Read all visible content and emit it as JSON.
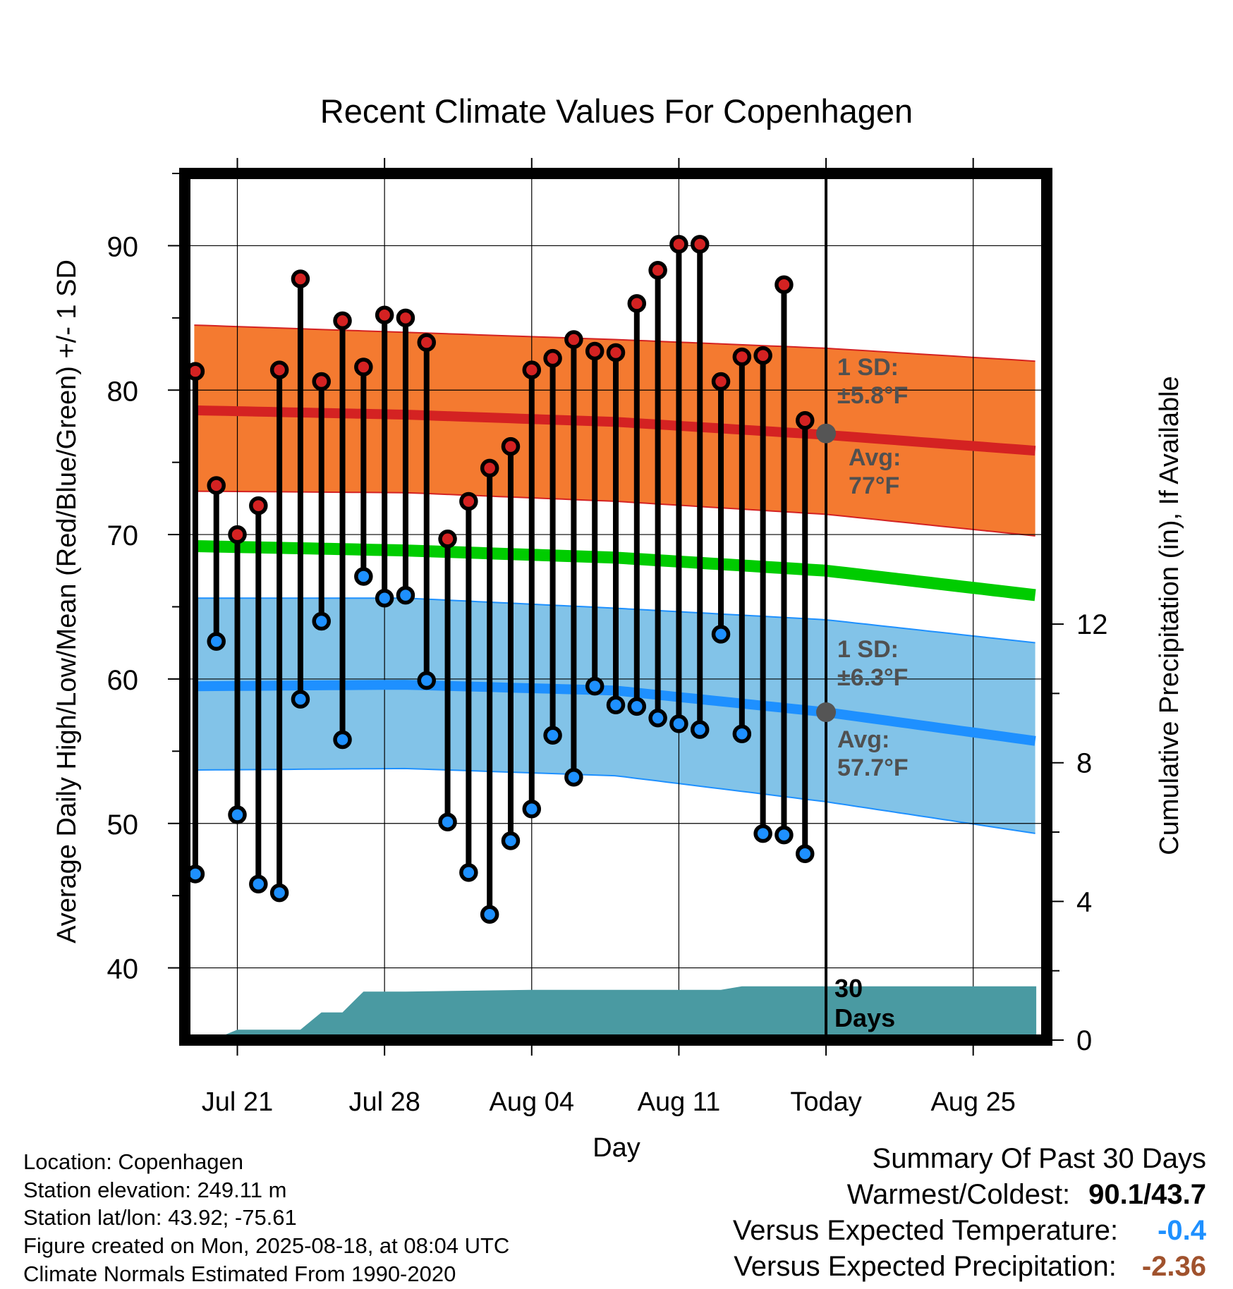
{
  "chart_data": {
    "type": "line",
    "title": "Recent Climate Values For Copenhagen",
    "xlabel": "Day",
    "ylabel": "Average Daily High/Low/Mean (Red/Blue/Green) +/- 1 SD",
    "ylabel_right": "Cumulative Precipitation (in), If Available",
    "ylim": [
      35,
      95
    ],
    "ylim_right": [
      0,
      25
    ],
    "yticks": [
      40,
      50,
      60,
      70,
      80,
      90
    ],
    "yticks_right": [
      0,
      4,
      8,
      12
    ],
    "xlim": [
      -0.5,
      40.5
    ],
    "xticks": [
      {
        "day": 2,
        "label": "Jul 21"
      },
      {
        "day": 9,
        "label": "Jul 28"
      },
      {
        "day": 16,
        "label": "Aug 04"
      },
      {
        "day": 23,
        "label": "Aug 11"
      },
      {
        "day": 30,
        "label": "Today"
      },
      {
        "day": 37,
        "label": "Aug 25"
      }
    ],
    "today_day": 30,
    "today_label": [
      "30",
      "Days"
    ],
    "highs": [
      81.3,
      73.4,
      70.0,
      72.0,
      81.4,
      87.7,
      80.6,
      84.8,
      81.6,
      85.2,
      85.0,
      83.3,
      69.7,
      72.3,
      74.6,
      76.1,
      81.4,
      82.2,
      83.5,
      82.7,
      82.6,
      86.0,
      88.3,
      90.1,
      90.1,
      80.6,
      82.3,
      82.4,
      87.3,
      77.9
    ],
    "lows": [
      46.5,
      62.6,
      50.6,
      45.8,
      45.2,
      58.6,
      64.0,
      55.8,
      67.1,
      65.6,
      65.8,
      59.9,
      50.1,
      46.6,
      43.7,
      48.8,
      51.0,
      56.1,
      53.2,
      59.5,
      58.2,
      58.1,
      57.3,
      56.9,
      56.5,
      63.1,
      56.2,
      49.3,
      49.2,
      47.9
    ],
    "normal_high": {
      "x": [
        0,
        10,
        20,
        30,
        40
      ],
      "values": [
        78.6,
        78.3,
        77.8,
        76.9,
        75.8
      ]
    },
    "normal_high_sd_upper": {
      "x": [
        0,
        10,
        20,
        30,
        40
      ],
      "values": [
        84.5,
        84.0,
        83.5,
        82.9,
        82.0
      ]
    },
    "normal_high_sd_lower": {
      "x": [
        0,
        10,
        20,
        30,
        40
      ],
      "values": [
        73.0,
        72.9,
        72.3,
        71.4,
        69.9
      ]
    },
    "normal_mean": {
      "x": [
        0,
        10,
        20,
        30,
        40
      ],
      "values": [
        69.2,
        68.9,
        68.4,
        67.5,
        65.8
      ]
    },
    "normal_low": {
      "x": [
        0,
        10,
        20,
        30,
        40
      ],
      "values": [
        59.5,
        59.6,
        59.2,
        57.7,
        55.7
      ]
    },
    "normal_low_sd_upper": {
      "x": [
        0,
        10,
        20,
        30,
        40
      ],
      "values": [
        65.6,
        65.6,
        64.9,
        64.1,
        62.5
      ]
    },
    "normal_low_sd_lower": {
      "x": [
        0,
        10,
        20,
        30,
        40
      ],
      "values": [
        53.7,
        53.8,
        53.3,
        51.5,
        49.3
      ]
    },
    "precip_cumulative": {
      "x": [
        0,
        0.5,
        1,
        2,
        5,
        6,
        7,
        8,
        9,
        10,
        16,
        25,
        26,
        30,
        40
      ],
      "values": [
        0,
        0,
        0.05,
        0.3,
        0.3,
        0.8,
        0.8,
        1.4,
        1.4,
        1.4,
        1.45,
        1.45,
        1.55,
        1.55,
        1.55
      ]
    },
    "annotations": {
      "high_sd": [
        "1 SD:",
        "±5.8°F"
      ],
      "high_avg": [
        "Avg:",
        "77°F"
      ],
      "low_sd": [
        "1 SD:",
        "±6.3°F"
      ],
      "low_avg": [
        "Avg:",
        "57.7°F"
      ],
      "high_avg_value": 77,
      "low_avg_value": 57.7
    },
    "colors": {
      "high": "#d42222",
      "high_band": "#f47a30",
      "low": "#1e90ff",
      "low_band": "#82c3e8",
      "mean": "#00cc00",
      "precip": "#4a9aa2",
      "annotation": "#505050"
    }
  },
  "info": {
    "location": "Location: Copenhagen",
    "elevation": "Station elevation: 249.11 m",
    "latlon": "Station lat/lon: 43.92; -75.61",
    "created": "Figure created on Mon, 2025-08-18, at 08:04 UTC",
    "normals": "Climate Normals Estimated From 1990-2020"
  },
  "summary": {
    "title": "Summary Of Past 30 Days",
    "warmest_label": "Warmest/Coldest:",
    "warmest_value": "90.1/43.7",
    "temp_label": "Versus Expected Temperature:",
    "temp_value": "-0.4",
    "temp_color": "#1e90ff",
    "precip_label": "Versus Expected Precipitation:",
    "precip_value": "-2.36",
    "precip_color": "#a0522d"
  }
}
